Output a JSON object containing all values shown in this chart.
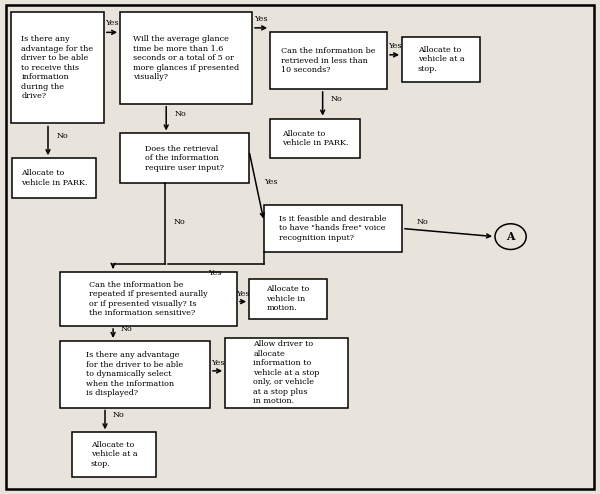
{
  "bg_color": "#e8e4dc",
  "fs": 5.8,
  "boxes": {
    "q1": [
      0.018,
      0.75,
      0.155,
      0.225
    ],
    "q2": [
      0.2,
      0.79,
      0.22,
      0.185
    ],
    "q3": [
      0.45,
      0.82,
      0.195,
      0.115
    ],
    "r1": [
      0.67,
      0.835,
      0.13,
      0.09
    ],
    "r2": [
      0.45,
      0.68,
      0.15,
      0.08
    ],
    "r3": [
      0.02,
      0.6,
      0.14,
      0.08
    ],
    "q4": [
      0.2,
      0.63,
      0.215,
      0.1
    ],
    "q5": [
      0.44,
      0.49,
      0.23,
      0.095
    ],
    "q6": [
      0.1,
      0.34,
      0.295,
      0.11
    ],
    "r4": [
      0.415,
      0.355,
      0.13,
      0.08
    ],
    "q7": [
      0.1,
      0.175,
      0.25,
      0.135
    ],
    "r5": [
      0.375,
      0.175,
      0.205,
      0.14
    ],
    "r6": [
      0.12,
      0.035,
      0.14,
      0.09
    ],
    "cA": [
      0.825,
      0.495,
      0.052,
      0.052
    ]
  },
  "texts": {
    "q1": "Is there any\nadvantage for the\ndriver to be able\nto receive this\ninformation\nduring the\ndrive?",
    "q2": "Will the average glance\ntime be more than 1.6\nseconds or a total of 5 or\nmore glances if presented\nvisually?",
    "q3": "Can the information be\nretrieved in less than\n10 seconds?",
    "r1": "Allocate to\nvehicle at a\nstop.",
    "r2": "Allocate to\nvehicle in PARK.",
    "r3": "Allocate to\nvehicle in PARK.",
    "q4": "Does the retrieval\nof the information\nrequire user input?",
    "q5": "Is it feasible and desirable\nto have \"hands free\" voice\nrecognition input?",
    "q6": "Can the information be\nrepeated if presented aurally\nor if presented visually? Is\nthe information sensitive?",
    "r4": "Allocate to\nvehicle in\nmotion.",
    "q7": "Is there any advantage\nfor the driver to be able\nto dynamically select\nwhen the information\nis displayed?",
    "r5": "Allow driver to\nallocate\ninformation to\nvehicle at a stop\nonly, or vehicle\nat a stop plus\nin motion.",
    "r6": "Allocate to\nvehicle at a\nstop.",
    "cA": "A"
  }
}
